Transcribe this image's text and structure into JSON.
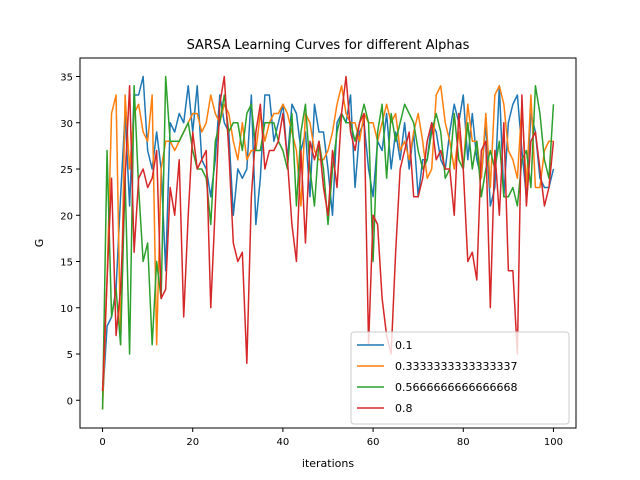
{
  "chart_data": {
    "type": "line",
    "title": "SARSA Learning Curves for different Alphas",
    "xlabel": "iterations",
    "ylabel": "G",
    "xlim": [
      -5,
      105
    ],
    "ylim": [
      -3,
      37
    ],
    "xticks": [
      0,
      20,
      40,
      60,
      80,
      100
    ],
    "yticks": [
      0,
      5,
      10,
      15,
      20,
      25,
      30,
      35
    ],
    "grid": false,
    "legend_position": "lower-right",
    "series": [
      {
        "name": "0.1",
        "color": "#1f77b4",
        "values": [
          0,
          8,
          9,
          12,
          22,
          31,
          21,
          33,
          33,
          35,
          27,
          25,
          29,
          25,
          14,
          30,
          29,
          31,
          30,
          34,
          29,
          34,
          26,
          25,
          22,
          26,
          33,
          30,
          29,
          20,
          25,
          24,
          25,
          33,
          19,
          24,
          33,
          33,
          28,
          30,
          32,
          26,
          32,
          31,
          27,
          29,
          22,
          32,
          29,
          29,
          25,
          20,
          30,
          31,
          30,
          33,
          23,
          29,
          30,
          25,
          22,
          28,
          27,
          31,
          25,
          29,
          26,
          30,
          25,
          29,
          22,
          26,
          26,
          30,
          29,
          26,
          25,
          29,
          32,
          30,
          33,
          26,
          31,
          26,
          24,
          30,
          21,
          23,
          34,
          22,
          30,
          32,
          33,
          27,
          22,
          31,
          29,
          24,
          23,
          23,
          25
        ]
      },
      {
        "name": "0.3333333333333337",
        "color": "#ff7f0e",
        "values": [
          -1,
          13,
          31,
          33,
          6,
          33,
          25,
          31,
          32,
          29,
          28,
          33,
          6,
          25,
          28,
          28,
          27,
          28,
          29,
          30,
          31,
          31,
          29,
          30,
          33,
          31,
          30,
          32,
          31,
          28,
          26,
          30,
          26,
          27,
          27,
          31,
          28,
          30,
          31,
          31,
          32,
          31,
          29,
          27,
          21,
          31,
          30,
          27,
          26,
          26,
          27,
          29,
          32,
          34,
          31,
          30,
          30,
          28,
          31,
          30,
          30,
          28,
          30,
          32,
          30,
          31,
          27,
          28,
          26,
          29,
          31,
          28,
          24,
          25,
          33,
          34,
          30,
          28,
          25,
          29,
          25,
          32,
          28,
          28,
          24,
          31,
          23,
          33,
          34,
          32,
          27,
          26,
          24,
          32,
          23,
          33,
          23,
          23,
          27,
          28,
          28
        ]
      },
      {
        "name": "0.5666666666666668",
        "color": "#2ca02c",
        "values": [
          -1,
          27,
          9,
          12,
          6,
          24,
          5,
          34,
          23,
          15,
          17,
          6,
          15,
          11,
          35,
          28,
          28,
          28,
          29,
          30,
          27,
          25,
          25,
          24,
          19,
          28,
          30,
          33,
          29,
          30,
          30,
          27,
          31,
          32,
          27,
          27,
          30,
          30,
          30,
          28,
          27,
          25,
          31,
          21,
          29,
          32,
          25,
          21,
          28,
          25,
          19,
          25,
          29,
          31,
          30,
          30,
          28,
          30,
          32,
          30,
          15,
          29,
          32,
          24,
          31,
          28,
          30,
          32,
          31,
          30,
          27,
          25,
          26,
          29,
          31,
          29,
          24,
          25,
          31,
          26,
          25,
          30,
          25,
          28,
          22,
          25,
          27,
          25,
          28,
          22,
          22,
          23,
          21,
          26,
          27,
          23,
          34,
          31,
          26,
          24,
          32
        ]
      },
      {
        "name": "0.8",
        "color": "#d62728",
        "values": [
          1,
          13,
          24,
          7,
          12,
          24,
          34,
          16,
          24,
          25,
          23,
          24,
          27,
          11,
          12,
          23,
          20,
          26,
          9,
          20,
          29,
          25,
          26,
          27,
          10,
          21,
          32,
          35,
          27,
          17,
          15,
          16,
          4,
          22,
          29,
          32,
          25,
          27,
          27,
          28,
          31,
          26,
          19,
          15,
          27,
          17,
          28,
          26,
          28,
          23,
          20,
          27,
          23,
          31,
          35,
          29,
          27,
          30,
          31,
          6,
          20,
          19,
          11,
          7,
          5,
          16,
          25,
          27,
          29,
          22,
          22,
          24,
          28,
          30,
          26,
          27,
          25,
          25,
          20,
          31,
          25,
          15,
          16,
          13,
          27,
          28,
          10,
          27,
          20,
          30,
          14,
          14,
          5,
          33,
          21,
          28,
          29,
          25,
          21,
          23,
          28
        ]
      }
    ]
  }
}
